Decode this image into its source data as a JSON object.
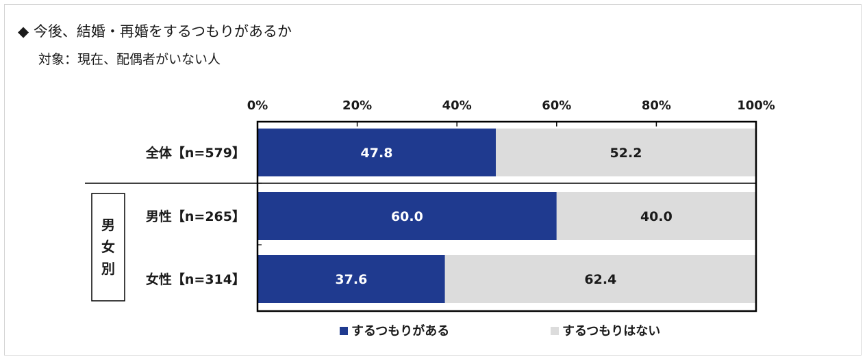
{
  "header": {
    "title": "◆ 今後、結婚・再婚をするつもりがあるか",
    "subtitle": "対象：現在、配偶者がいない人"
  },
  "chart_data": {
    "type": "bar",
    "orientation": "horizontal",
    "stacked": true,
    "percent_stacked": true,
    "categories": [
      "全体【n=579】",
      "男性【n=265】",
      "女性【n=314】"
    ],
    "series": [
      {
        "name": "するつもりがある",
        "values": [
          47.8,
          60.0,
          37.6
        ],
        "color": "#1f3a8f",
        "label_color": "#ffffff"
      },
      {
        "name": "するつもりはない",
        "values": [
          52.2,
          40.0,
          62.4
        ],
        "color": "#dcdcdc",
        "label_color": "#1a1a1a"
      }
    ],
    "xlim": [
      0,
      100
    ],
    "xticks": [
      "0%",
      "20%",
      "40%",
      "60%",
      "80%",
      "100%"
    ],
    "axis_position": "top",
    "grid": false,
    "legend_position": "bottom",
    "group_label": {
      "text": "男女別",
      "chars": [
        "男",
        "女",
        "別"
      ]
    }
  }
}
